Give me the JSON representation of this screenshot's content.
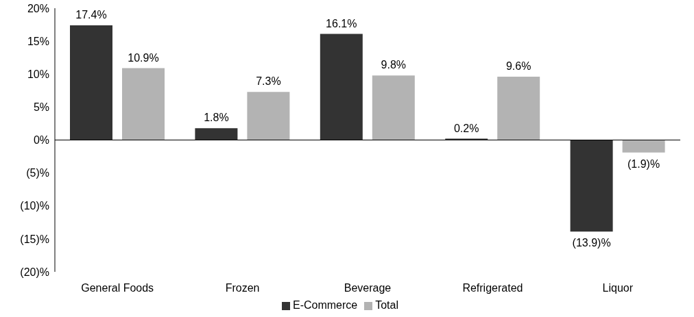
{
  "chart_data": {
    "type": "bar",
    "categories": [
      "General Foods",
      "Frozen",
      "Beverage",
      "Refrigerated",
      "Liquor"
    ],
    "series": [
      {
        "name": "E-Commerce",
        "color": "#333333",
        "values": [
          17.4,
          1.8,
          16.1,
          0.2,
          -13.9
        ],
        "value_labels": [
          "17.4%",
          "1.8%",
          "16.1%",
          "0.2%",
          "(13.9)%"
        ]
      },
      {
        "name": "Total",
        "color": "#b3b3b3",
        "values": [
          10.9,
          7.3,
          9.8,
          9.6,
          -1.9
        ],
        "value_labels": [
          "10.9%",
          "7.3%",
          "9.8%",
          "9.6%",
          "(1.9)%"
        ]
      }
    ],
    "ylim": [
      -20,
      20
    ],
    "yticks": [
      {
        "value": -20,
        "label": "(20)%"
      },
      {
        "value": -15,
        "label": "(15)%"
      },
      {
        "value": -10,
        "label": "(10)%"
      },
      {
        "value": -5,
        "label": "(5)%"
      },
      {
        "value": 0,
        "label": "0%"
      },
      {
        "value": 5,
        "label": "5%"
      },
      {
        "value": 10,
        "label": "10%"
      },
      {
        "value": 15,
        "label": "15%"
      },
      {
        "value": 20,
        "label": "20%"
      }
    ],
    "grid": false,
    "legend": "bottom",
    "data_labels": true
  }
}
